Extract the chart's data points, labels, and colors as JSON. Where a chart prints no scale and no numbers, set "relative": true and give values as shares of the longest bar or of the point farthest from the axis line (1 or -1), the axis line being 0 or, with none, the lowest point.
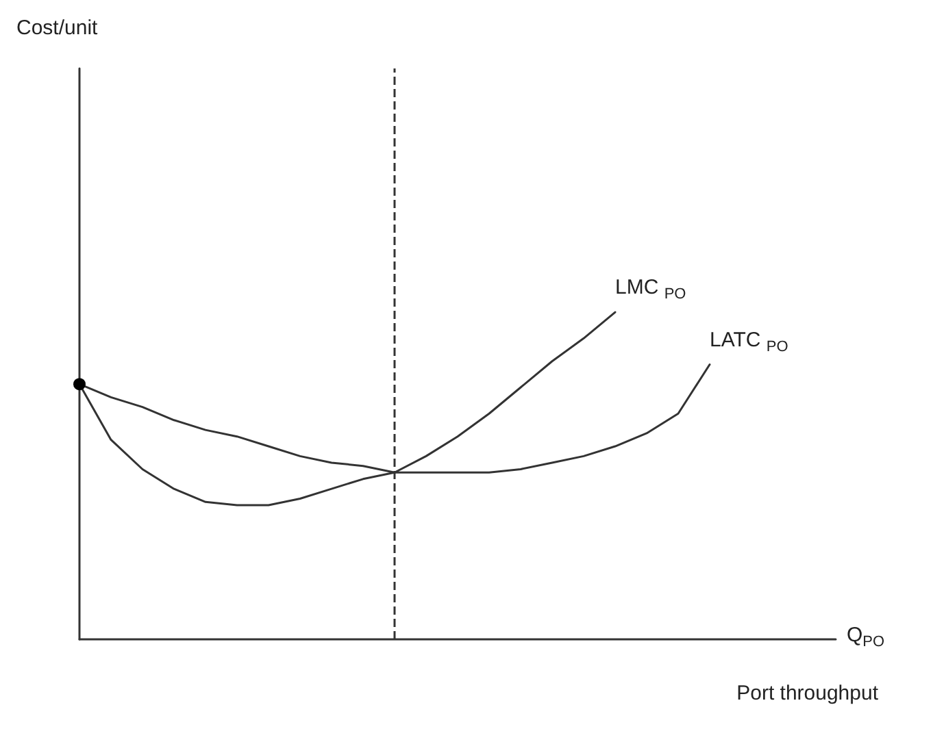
{
  "chart_data": {
    "type": "line",
    "relative": true,
    "xlabel": "Port throughput",
    "annotations": [
      "Q$_{PO}$",
      "Cost/unit"
    ],
    "categories": [
      null,
      null,
      null,
      null,
      null,
      null,
      null,
      null,
      null,
      null,
      null,
      null,
      null,
      null,
      null,
      null,
      null,
      null,
      null,
      null,
      null,
      null,
      null,
      null,
      null
    ],
    "series": [
      {
        "name": "LMC $_{PO}$",
        "color": "#333333",
        "values": [
          0.78,
          0.61,
          0.52,
          0.46,
          0.42,
          0.41,
          0.41,
          0.43,
          0.46,
          0.49,
          0.51,
          0.56,
          0.62,
          0.69,
          0.77,
          0.85,
          0.92,
          1.0,
          null,
          null,
          null,
          null,
          null,
          null,
          null
        ]
      },
      {
        "name": "LATC $_{PO}$",
        "color": "#333333",
        "values": [
          0.78,
          0.74,
          0.71,
          0.67,
          0.64,
          0.62,
          0.59,
          0.56,
          0.54,
          0.53,
          0.51,
          0.51,
          0.51,
          0.51,
          0.52,
          0.54,
          0.56,
          0.59,
          0.63,
          0.69,
          0.84,
          null,
          null,
          null,
          null
        ]
      }
    ],
    "grid": false,
    "legend": false,
    "marker": "none",
    "line_style": "solid"
  }
}
